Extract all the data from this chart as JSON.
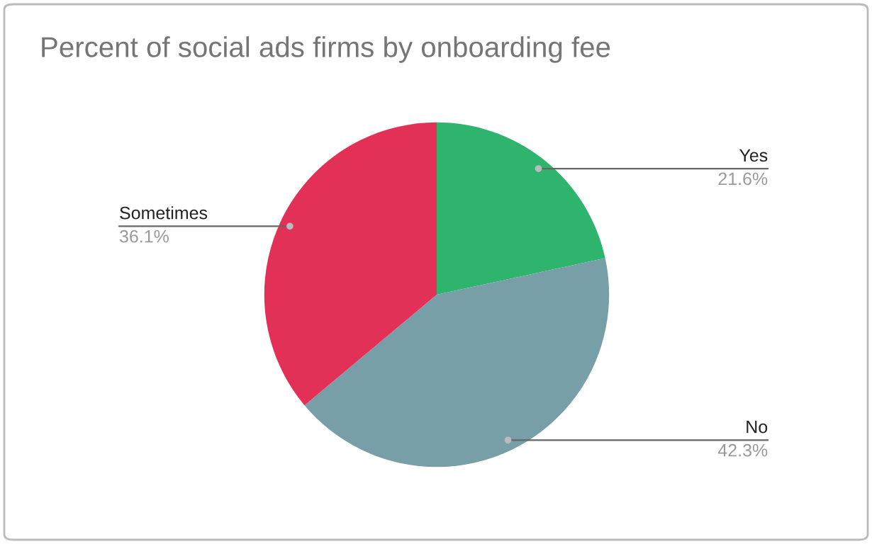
{
  "chart_data": {
    "type": "pie",
    "title": "Percent of social ads firms by onboarding fee",
    "categories": [
      "Yes",
      "No",
      "Sometimes"
    ],
    "values": [
      21.6,
      42.3,
      36.1
    ],
    "value_labels": [
      "21.6%",
      "42.3%",
      "36.1%"
    ],
    "colors": [
      "#2eb46c",
      "#789fa8",
      "#e33056"
    ]
  }
}
